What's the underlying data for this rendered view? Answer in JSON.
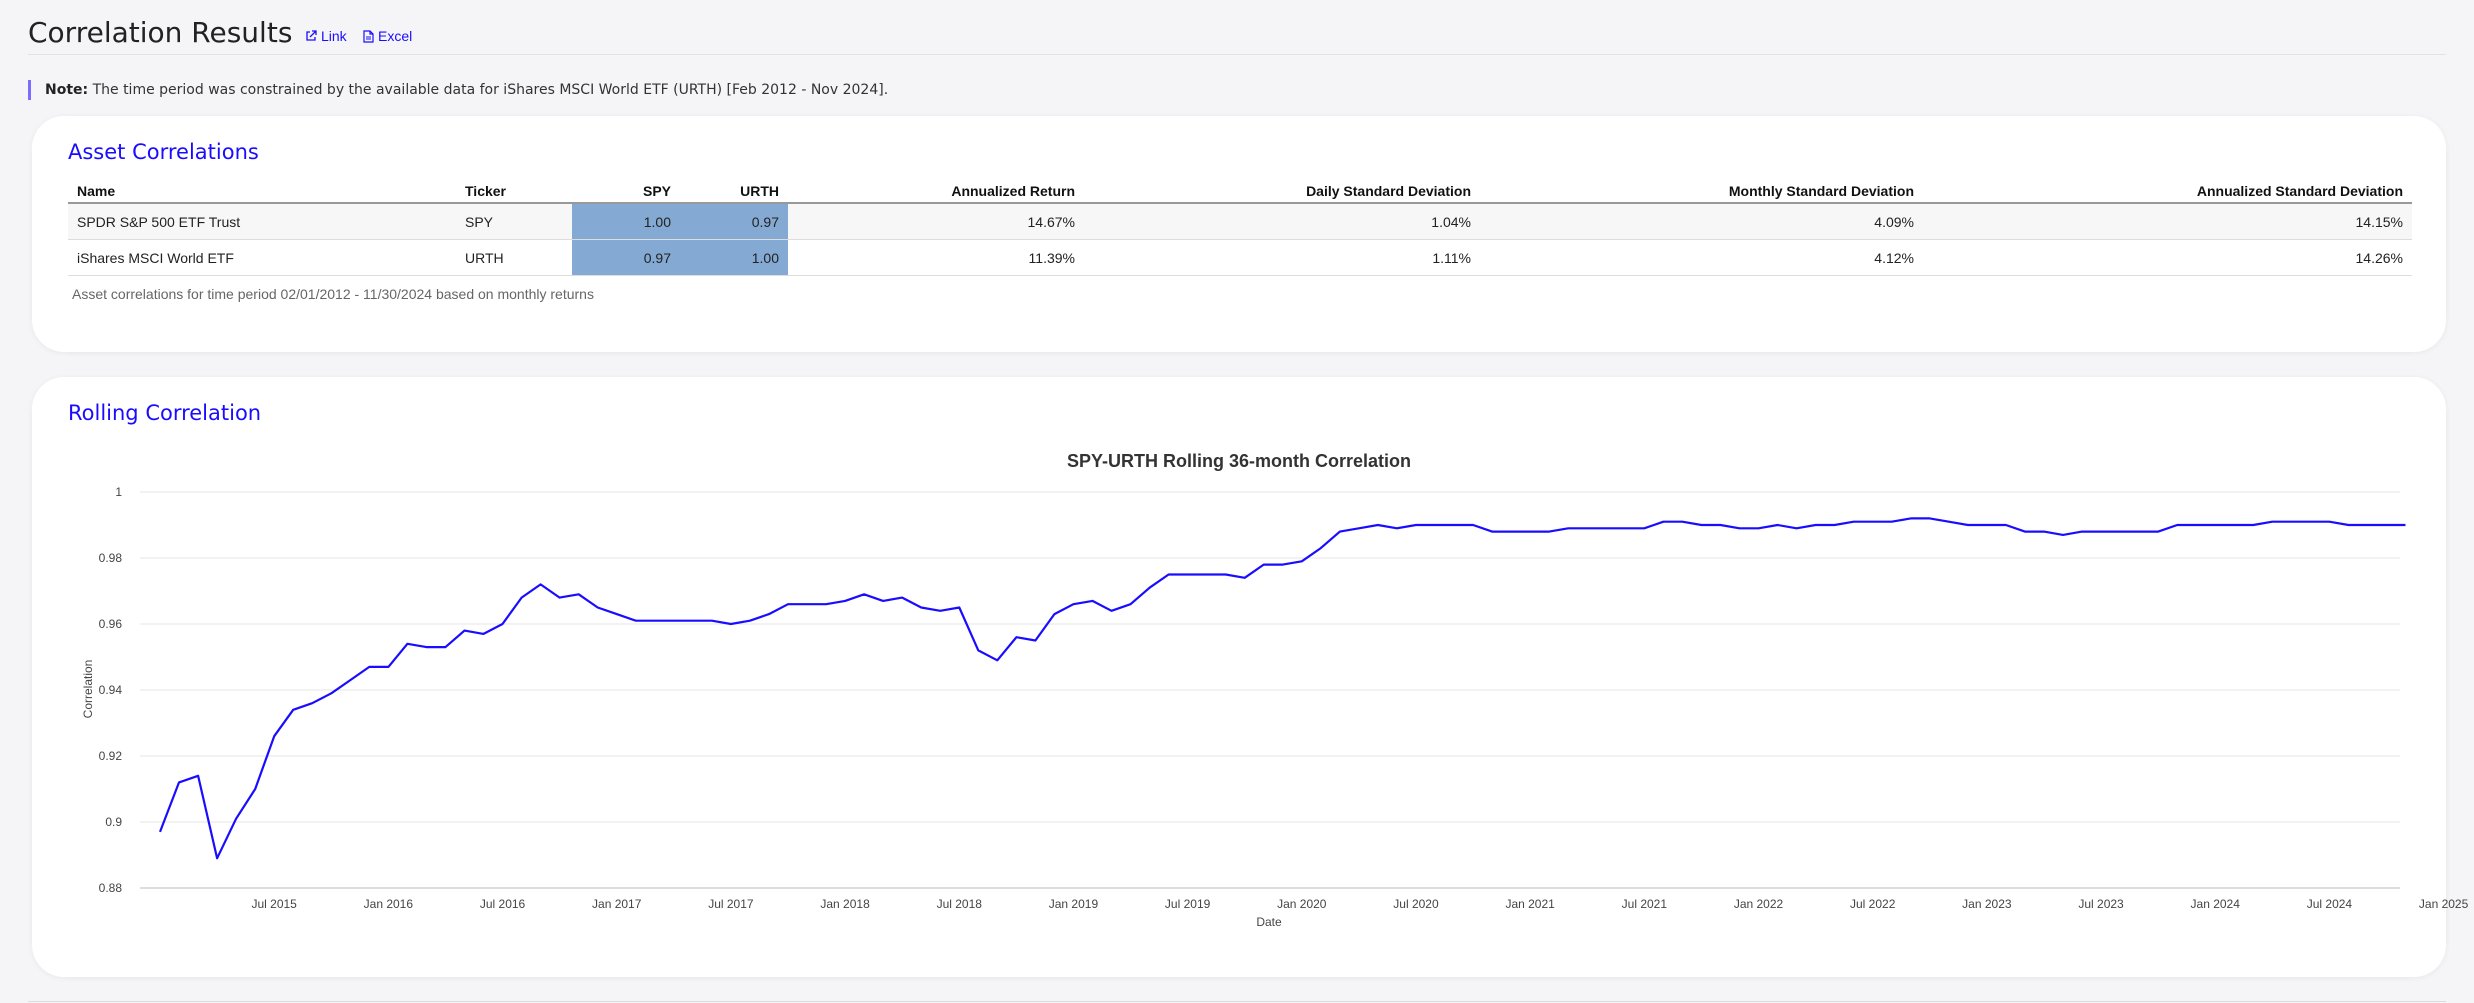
{
  "header": {
    "title": "Correlation Results",
    "link_label": "Link",
    "excel_label": "Excel"
  },
  "note": {
    "label": "Note:",
    "text": "The time period was constrained by the available data for iShares MSCI World ETF (URTH) [Feb 2012 - Nov 2024]."
  },
  "asset_correlations": {
    "title": "Asset Correlations",
    "columns": [
      "Name",
      "Ticker",
      "SPY",
      "URTH",
      "Annualized Return",
      "Daily Standard Deviation",
      "Monthly Standard Deviation",
      "Annualized Standard Deviation"
    ],
    "rows": [
      [
        "SPDR S&P 500 ETF Trust",
        "SPY",
        "1.00",
        "0.97",
        "14.67%",
        "1.04%",
        "4.09%",
        "14.15%"
      ],
      [
        "iShares MSCI World ETF",
        "URTH",
        "0.97",
        "1.00",
        "11.39%",
        "1.11%",
        "4.12%",
        "14.26%"
      ]
    ],
    "caption": "Asset correlations for time period 02/01/2012 - 11/30/2024 based on monthly returns",
    "heat_color": "#84aad3"
  },
  "rolling": {
    "title": "Rolling Correlation"
  },
  "chart_data": {
    "type": "line",
    "title": "SPY-URTH Rolling 36-month Correlation",
    "xlabel": "Date",
    "ylabel": "Correlation",
    "ylim": [
      0.88,
      1.0
    ],
    "yticks": [
      "0.88",
      "0.9",
      "0.92",
      "0.94",
      "0.96",
      "0.98",
      "1"
    ],
    "xticks": [
      "Jul 2015",
      "Jan 2016",
      "Jul 2016",
      "Jan 2017",
      "Jul 2017",
      "Jan 2018",
      "Jul 2018",
      "Jan 2019",
      "Jul 2019",
      "Jan 2020",
      "Jul 2020",
      "Jan 2021",
      "Jul 2021",
      "Jan 2022",
      "Jul 2022",
      "Jan 2023",
      "Jul 2023",
      "Jan 2024",
      "Jul 2024",
      "Jan 2025"
    ],
    "grid": true,
    "color": "#1a0dff",
    "series": [
      {
        "x": [
          "2015-01",
          "2015-02",
          "2015-03",
          "2015-04",
          "2015-05",
          "2015-06",
          "2015-07",
          "2015-08",
          "2015-09",
          "2015-10",
          "2015-11",
          "2015-12",
          "2016-01",
          "2016-02",
          "2016-03",
          "2016-04",
          "2016-05",
          "2016-06",
          "2016-07",
          "2016-08",
          "2016-09",
          "2016-10",
          "2016-11",
          "2016-12",
          "2017-01",
          "2017-02",
          "2017-03",
          "2017-04",
          "2017-05",
          "2017-06",
          "2017-07",
          "2017-08",
          "2017-09",
          "2017-10",
          "2017-11",
          "2017-12",
          "2018-01",
          "2018-02",
          "2018-03",
          "2018-04",
          "2018-05",
          "2018-06",
          "2018-07",
          "2018-08",
          "2018-09",
          "2018-10",
          "2018-11",
          "2018-12",
          "2019-01",
          "2019-02",
          "2019-03",
          "2019-04",
          "2019-05",
          "2019-06",
          "2019-07",
          "2019-08",
          "2019-09",
          "2019-10",
          "2019-11",
          "2019-12",
          "2020-01",
          "2020-02",
          "2020-03",
          "2020-04",
          "2020-05",
          "2020-06",
          "2020-07",
          "2020-08",
          "2020-09",
          "2020-10",
          "2020-11",
          "2020-12",
          "2021-01",
          "2021-02",
          "2021-03",
          "2021-04",
          "2021-05",
          "2021-06",
          "2021-07",
          "2021-08",
          "2021-09",
          "2021-10",
          "2021-11",
          "2021-12",
          "2022-01",
          "2022-02",
          "2022-03",
          "2022-04",
          "2022-05",
          "2022-06",
          "2022-07",
          "2022-08",
          "2022-09",
          "2022-10",
          "2022-11",
          "2022-12",
          "2023-01",
          "2023-02",
          "2023-03",
          "2023-04",
          "2023-05",
          "2023-06",
          "2023-07",
          "2023-08",
          "2023-09",
          "2023-10",
          "2023-11",
          "2023-12",
          "2024-01",
          "2024-02",
          "2024-03",
          "2024-04",
          "2024-05",
          "2024-06",
          "2024-07",
          "2024-08",
          "2024-09",
          "2024-10",
          "2024-11"
        ],
        "y": [
          0.897,
          0.912,
          0.914,
          0.889,
          0.901,
          0.91,
          0.926,
          0.934,
          0.936,
          0.939,
          0.943,
          0.947,
          0.947,
          0.954,
          0.953,
          0.953,
          0.958,
          0.957,
          0.96,
          0.968,
          0.972,
          0.968,
          0.969,
          0.965,
          0.963,
          0.961,
          0.961,
          0.961,
          0.961,
          0.961,
          0.96,
          0.961,
          0.963,
          0.966,
          0.966,
          0.966,
          0.967,
          0.969,
          0.967,
          0.968,
          0.965,
          0.964,
          0.965,
          0.952,
          0.949,
          0.956,
          0.955,
          0.963,
          0.966,
          0.967,
          0.964,
          0.966,
          0.971,
          0.975,
          0.975,
          0.975,
          0.975,
          0.974,
          0.978,
          0.978,
          0.979,
          0.983,
          0.988,
          0.989,
          0.99,
          0.989,
          0.99,
          0.99,
          0.99,
          0.99,
          0.988,
          0.988,
          0.988,
          0.988,
          0.989,
          0.989,
          0.989,
          0.989,
          0.989,
          0.991,
          0.991,
          0.99,
          0.99,
          0.989,
          0.989,
          0.99,
          0.989,
          0.99,
          0.99,
          0.991,
          0.991,
          0.991,
          0.992,
          0.992,
          0.991,
          0.99,
          0.99,
          0.99,
          0.988,
          0.988,
          0.987,
          0.988,
          0.988,
          0.988,
          0.988,
          0.988,
          0.99,
          0.99,
          0.99,
          0.99,
          0.99,
          0.991,
          0.991,
          0.991,
          0.991,
          0.99,
          0.99,
          0.99,
          0.99
        ]
      }
    ]
  }
}
